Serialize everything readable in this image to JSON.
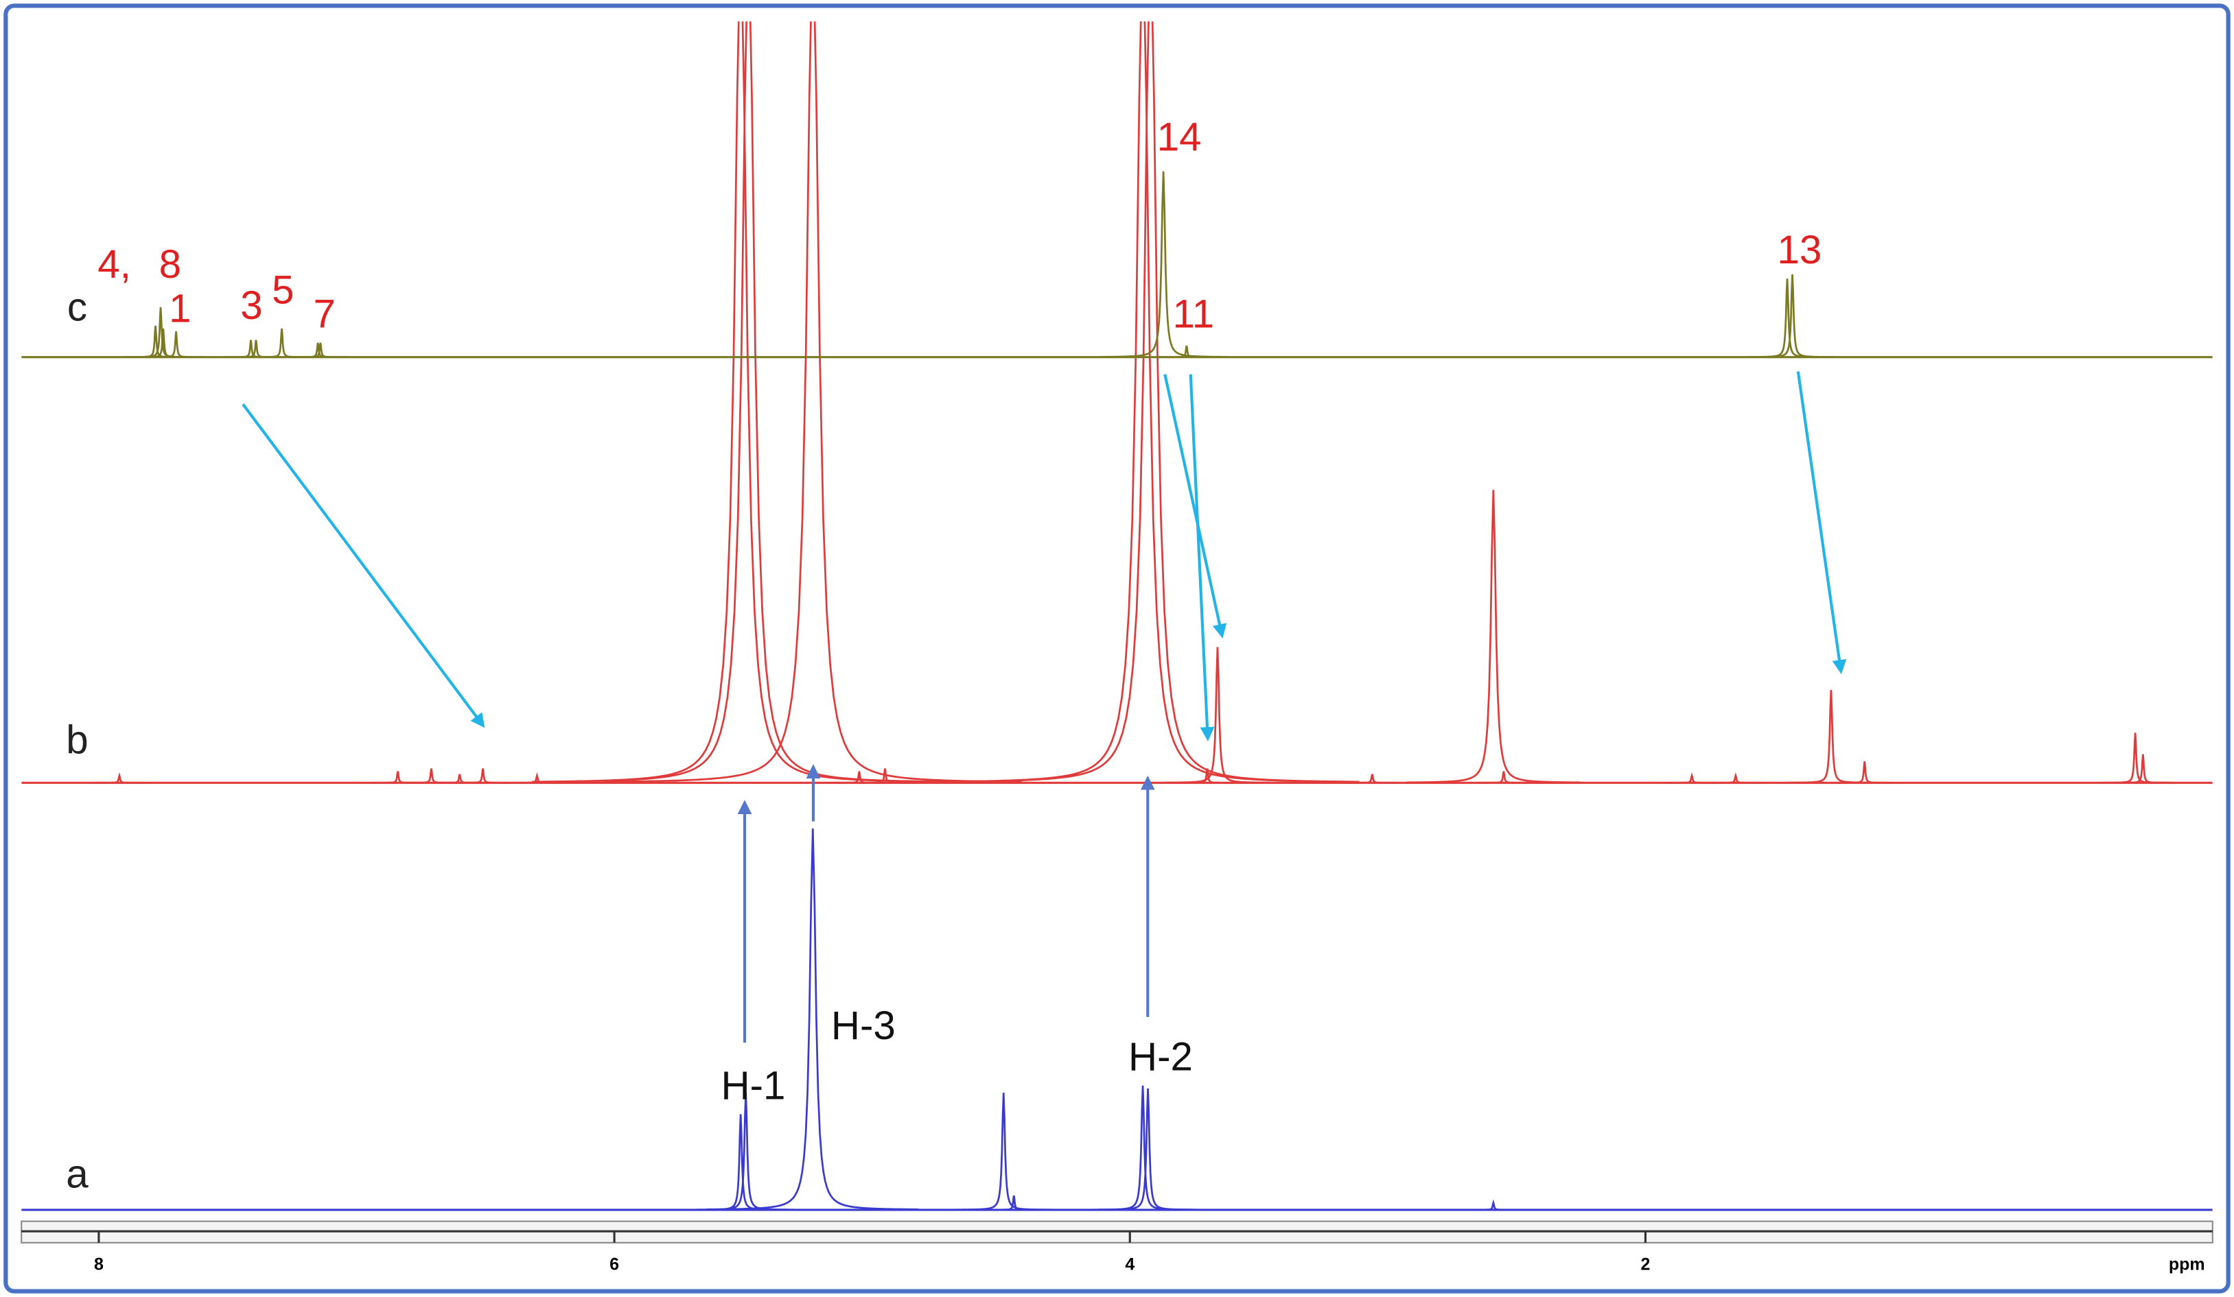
{
  "chart_data": {
    "type": "spectrum",
    "x_label": "ppm",
    "xlim": [
      8.3,
      -0.2
    ],
    "xticks": [
      8,
      6,
      4,
      2
    ],
    "series": [
      {
        "name": "a",
        "color": "#3a3ad0",
        "x": [
          5.51,
          5.49,
          5.23,
          4.49,
          4.45,
          3.95,
          3.93,
          2.59
        ],
        "values": [
          67,
          82,
          267,
          82,
          10,
          87,
          85,
          5
        ]
      },
      {
        "name": "b",
        "color": "#e03a3a",
        "x": [
          7.92,
          6.84,
          6.71,
          6.6,
          6.51,
          6.3,
          5.51,
          5.48,
          5.23,
          5.05,
          4.95,
          3.95,
          3.92,
          3.7,
          3.66,
          3.06,
          2.59,
          2.55,
          1.82,
          1.65,
          1.28,
          1.15,
          0.1,
          0.07
        ],
        "values": [
          5,
          8,
          10,
          6,
          10,
          5,
          600,
          600,
          600,
          8,
          10,
          600,
          600,
          10,
          95,
          6,
          205,
          8,
          5,
          5,
          65,
          15,
          35,
          20
        ]
      },
      {
        "name": "c",
        "color": "#7a7a22",
        "x": [
          7.78,
          7.76,
          7.75,
          7.7,
          7.41,
          7.39,
          7.29,
          7.15,
          7.14,
          3.87,
          3.78,
          1.45,
          1.43
        ],
        "values": [
          22,
          35,
          20,
          18,
          12,
          12,
          20,
          10,
          10,
          130,
          8,
          55,
          58
        ]
      }
    ],
    "annotations": [
      "4,",
      "8",
      "1",
      "3",
      "5",
      "7",
      "14",
      "11",
      "13",
      "H-1",
      "H-3",
      "H-2"
    ]
  }
}
